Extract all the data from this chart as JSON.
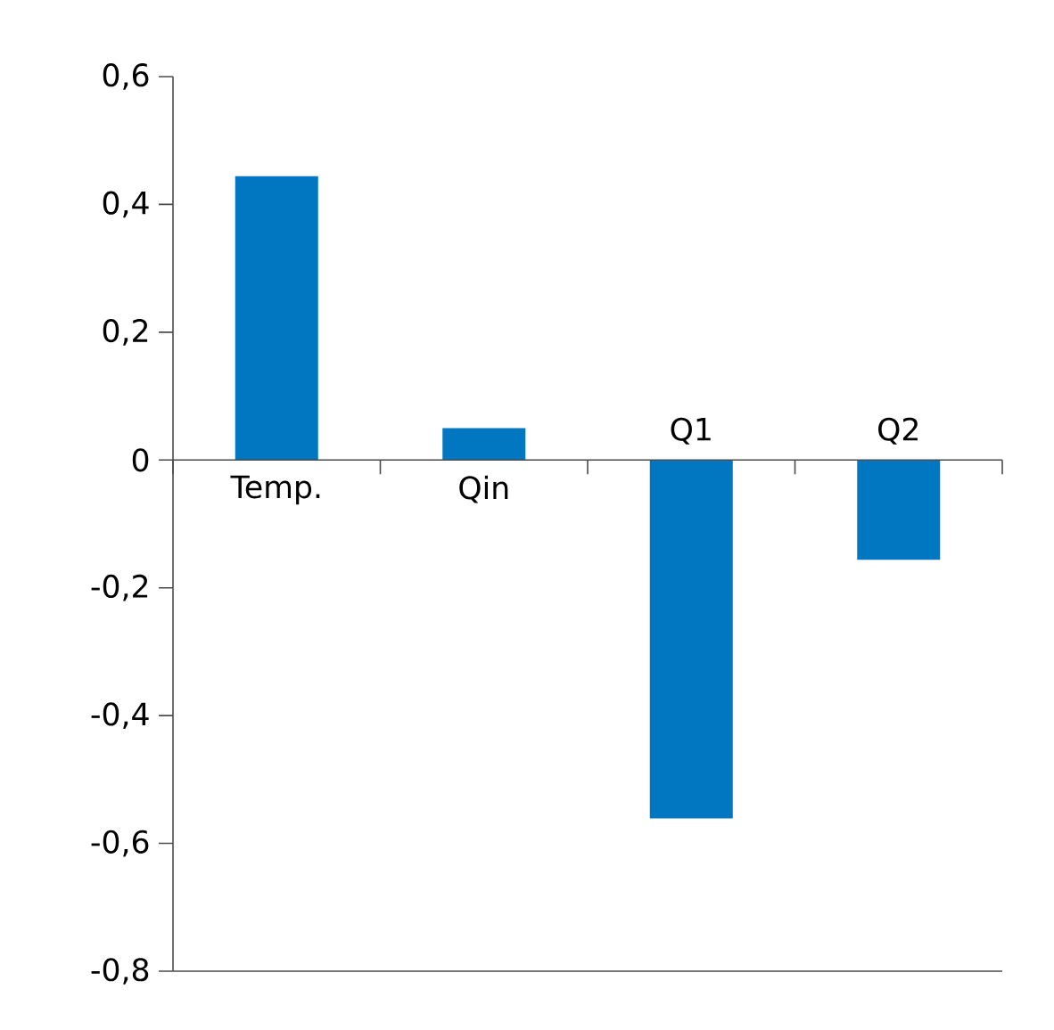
{
  "chart_data": {
    "type": "bar",
    "categories": [
      "Temp.",
      "Qin",
      "Q1",
      "Q2"
    ],
    "values": [
      0.444,
      0.05,
      -0.561,
      -0.156
    ],
    "color": "#0077c0",
    "ylim": [
      -0.8,
      0.6
    ],
    "yticks": [
      {
        "value": -0.8,
        "label": "-0,8"
      },
      {
        "value": -0.6,
        "label": "-0,6"
      },
      {
        "value": -0.4,
        "label": "-0,4"
      },
      {
        "value": -0.2,
        "label": "-0,2"
      },
      {
        "value": 0,
        "label": "0"
      },
      {
        "value": 0.2,
        "label": "0,2"
      },
      {
        "value": 0.4,
        "label": "0,4"
      },
      {
        "value": 0.6,
        "label": "0,6"
      }
    ],
    "grid": false
  }
}
